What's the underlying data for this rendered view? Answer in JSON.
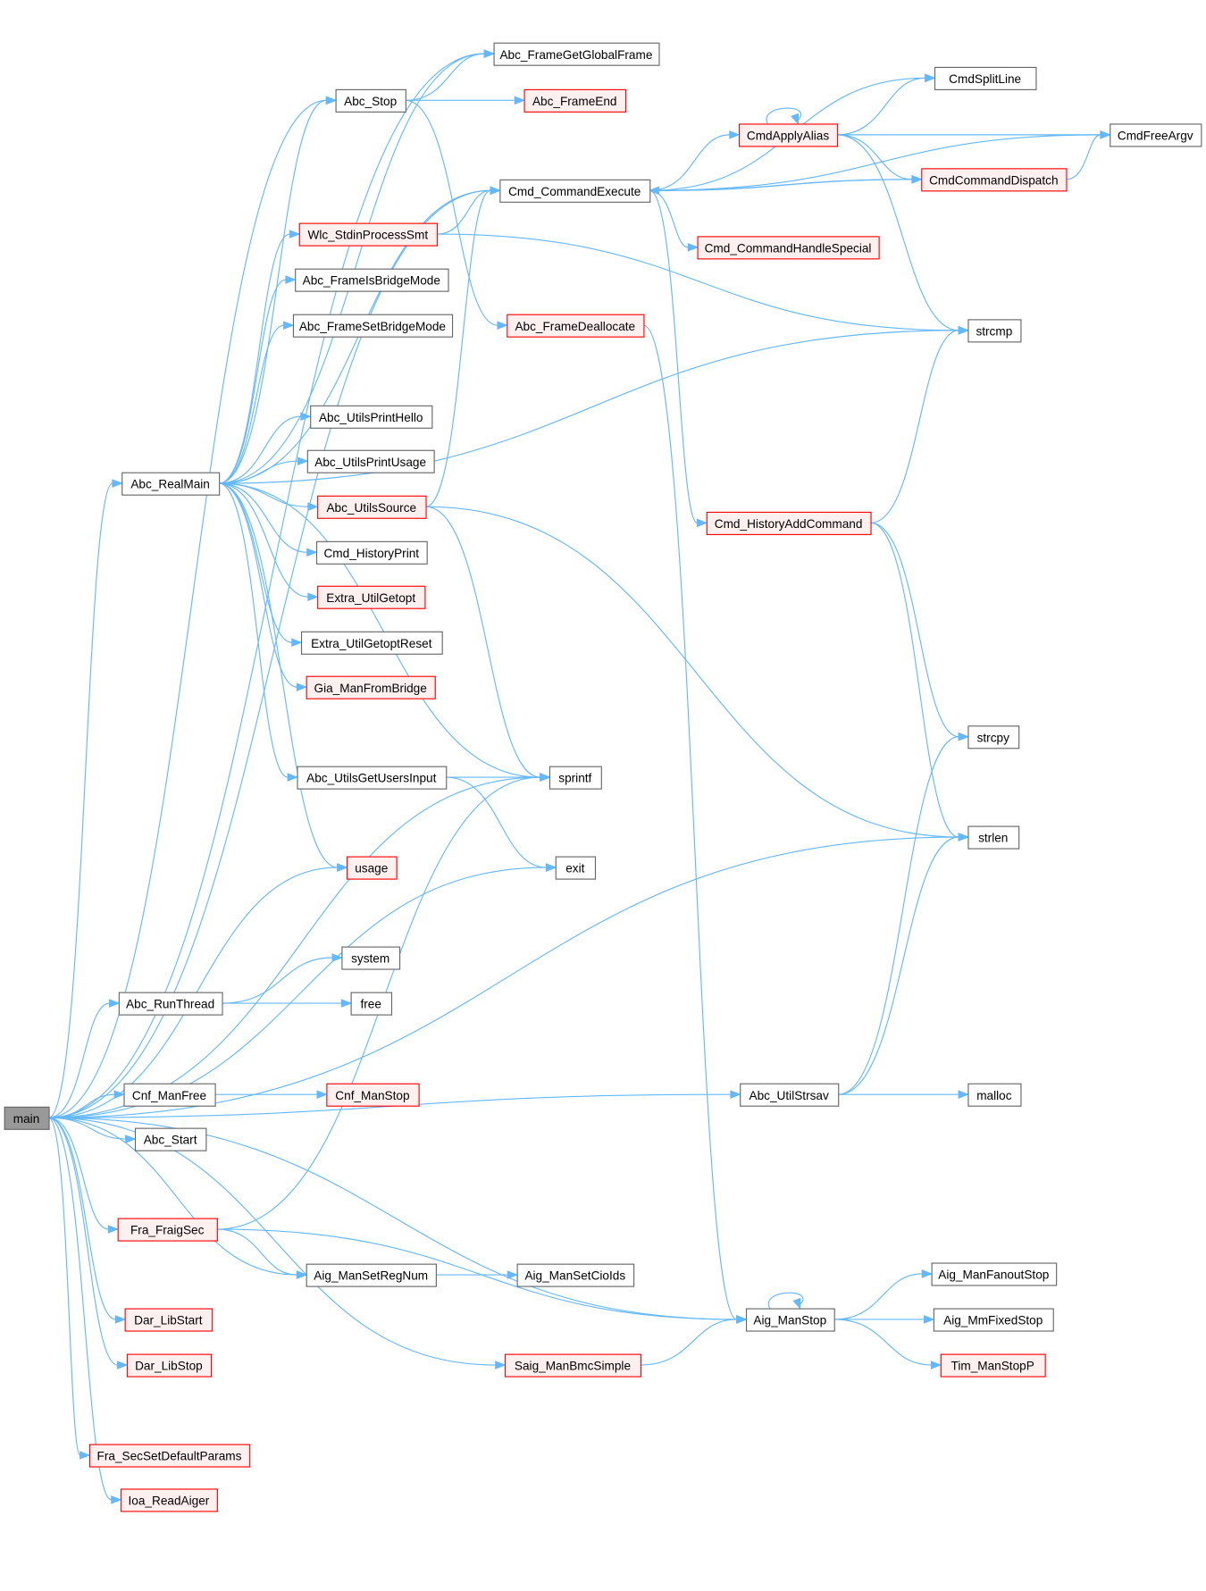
{
  "colors": {
    "edge": "#63b8ff",
    "truncated_border": "#ff0000",
    "truncated_fill": "#fff0f0",
    "root_fill": "#999999",
    "node_border": "#666666"
  },
  "nodes": [
    {
      "id": "main",
      "label": "main",
      "root": true
    },
    {
      "id": "Abc_FrameGetGlobalFrame",
      "label": "Abc_FrameGetGlobalFrame"
    },
    {
      "id": "Abc_Stop",
      "label": "Abc_Stop"
    },
    {
      "id": "Abc_FrameEnd",
      "label": "Abc_FrameEnd",
      "truncated": true
    },
    {
      "id": "CmdSplitLine",
      "label": "CmdSplitLine"
    },
    {
      "id": "CmdApplyAlias",
      "label": "CmdApplyAlias",
      "truncated": true
    },
    {
      "id": "CmdFreeArgv",
      "label": "CmdFreeArgv"
    },
    {
      "id": "Cmd_CommandExecute",
      "label": "Cmd_CommandExecute"
    },
    {
      "id": "CmdCommandDispatch",
      "label": "CmdCommandDispatch",
      "truncated": true
    },
    {
      "id": "Wlc_StdinProcessSmt",
      "label": "Wlc_StdinProcessSmt",
      "truncated": true
    },
    {
      "id": "Cmd_CommandHandleSpecial",
      "label": "Cmd_CommandHandleSpecial",
      "truncated": true
    },
    {
      "id": "Abc_FrameIsBridgeMode",
      "label": "Abc_FrameIsBridgeMode"
    },
    {
      "id": "Abc_FrameSetBridgeMode",
      "label": "Abc_FrameSetBridgeMode"
    },
    {
      "id": "Abc_FrameDeallocate",
      "label": "Abc_FrameDeallocate",
      "truncated": true
    },
    {
      "id": "strcmp",
      "label": "strcmp"
    },
    {
      "id": "Abc_UtilsPrintHello",
      "label": "Abc_UtilsPrintHello"
    },
    {
      "id": "Abc_UtilsPrintUsage",
      "label": "Abc_UtilsPrintUsage"
    },
    {
      "id": "Abc_RealMain",
      "label": "Abc_RealMain"
    },
    {
      "id": "Abc_UtilsSource",
      "label": "Abc_UtilsSource",
      "truncated": true
    },
    {
      "id": "Cmd_HistoryAddCommand",
      "label": "Cmd_HistoryAddCommand",
      "truncated": true
    },
    {
      "id": "Cmd_HistoryPrint",
      "label": "Cmd_HistoryPrint"
    },
    {
      "id": "Extra_UtilGetopt",
      "label": "Extra_UtilGetopt",
      "truncated": true
    },
    {
      "id": "Extra_UtilGetoptReset",
      "label": "Extra_UtilGetoptReset"
    },
    {
      "id": "Gia_ManFromBridge",
      "label": "Gia_ManFromBridge",
      "truncated": true
    },
    {
      "id": "strcpy",
      "label": "strcpy"
    },
    {
      "id": "Abc_UtilsGetUsersInput",
      "label": "Abc_UtilsGetUsersInput"
    },
    {
      "id": "sprintf",
      "label": "sprintf"
    },
    {
      "id": "strlen",
      "label": "strlen"
    },
    {
      "id": "usage",
      "label": "usage",
      "truncated": true
    },
    {
      "id": "exit",
      "label": "exit"
    },
    {
      "id": "system",
      "label": "system"
    },
    {
      "id": "Abc_RunThread",
      "label": "Abc_RunThread"
    },
    {
      "id": "free",
      "label": "free"
    },
    {
      "id": "Cnf_ManFree",
      "label": "Cnf_ManFree"
    },
    {
      "id": "Cnf_ManStop",
      "label": "Cnf_ManStop",
      "truncated": true
    },
    {
      "id": "Abc_UtilStrsav",
      "label": "Abc_UtilStrsav"
    },
    {
      "id": "malloc",
      "label": "malloc"
    },
    {
      "id": "Abc_Start",
      "label": "Abc_Start"
    },
    {
      "id": "Fra_FraigSec",
      "label": "Fra_FraigSec",
      "truncated": true
    },
    {
      "id": "Aig_ManSetRegNum",
      "label": "Aig_ManSetRegNum"
    },
    {
      "id": "Aig_ManSetCioIds",
      "label": "Aig_ManSetCioIds"
    },
    {
      "id": "Aig_ManFanoutStop",
      "label": "Aig_ManFanoutStop"
    },
    {
      "id": "Dar_LibStart",
      "label": "Dar_LibStart",
      "truncated": true
    },
    {
      "id": "Aig_ManStop",
      "label": "Aig_ManStop"
    },
    {
      "id": "Aig_MmFixedStop",
      "label": "Aig_MmFixedStop"
    },
    {
      "id": "Dar_LibStop",
      "label": "Dar_LibStop",
      "truncated": true
    },
    {
      "id": "Saig_ManBmcSimple",
      "label": "Saig_ManBmcSimple",
      "truncated": true
    },
    {
      "id": "Tim_ManStopP",
      "label": "Tim_ManStopP",
      "truncated": true
    },
    {
      "id": "Fra_SecSetDefaultParams",
      "label": "Fra_SecSetDefaultParams",
      "truncated": true
    },
    {
      "id": "Ioa_ReadAiger",
      "label": "Ioa_ReadAiger",
      "truncated": true
    }
  ],
  "edges": [
    [
      "main",
      "Abc_FrameGetGlobalFrame"
    ],
    [
      "main",
      "Abc_Stop"
    ],
    [
      "main",
      "Cmd_CommandExecute"
    ],
    [
      "main",
      "Abc_RealMain"
    ],
    [
      "main",
      "sprintf"
    ],
    [
      "main",
      "usage"
    ],
    [
      "main",
      "exit"
    ],
    [
      "main",
      "strlen"
    ],
    [
      "main",
      "Abc_RunThread"
    ],
    [
      "main",
      "Cnf_ManFree"
    ],
    [
      "main",
      "Abc_UtilStrsav"
    ],
    [
      "main",
      "Abc_Start"
    ],
    [
      "main",
      "Fra_FraigSec"
    ],
    [
      "main",
      "Aig_ManSetRegNum"
    ],
    [
      "main",
      "Dar_LibStart"
    ],
    [
      "main",
      "Dar_LibStop"
    ],
    [
      "main",
      "Saig_ManBmcSimple"
    ],
    [
      "main",
      "Fra_SecSetDefaultParams"
    ],
    [
      "main",
      "Ioa_ReadAiger"
    ],
    [
      "main",
      "Aig_ManStop"
    ],
    [
      "Abc_Stop",
      "Abc_FrameGetGlobalFrame"
    ],
    [
      "Abc_Stop",
      "Abc_FrameEnd"
    ],
    [
      "Abc_Stop",
      "Abc_FrameDeallocate"
    ],
    [
      "Abc_RealMain",
      "Abc_FrameGetGlobalFrame"
    ],
    [
      "Abc_RealMain",
      "Abc_Stop"
    ],
    [
      "Abc_RealMain",
      "Cmd_CommandExecute"
    ],
    [
      "Abc_RealMain",
      "Wlc_StdinProcessSmt"
    ],
    [
      "Abc_RealMain",
      "Abc_FrameIsBridgeMode"
    ],
    [
      "Abc_RealMain",
      "Abc_FrameSetBridgeMode"
    ],
    [
      "Abc_RealMain",
      "strcmp"
    ],
    [
      "Abc_RealMain",
      "Abc_UtilsPrintHello"
    ],
    [
      "Abc_RealMain",
      "Abc_UtilsPrintUsage"
    ],
    [
      "Abc_RealMain",
      "Abc_UtilsSource"
    ],
    [
      "Abc_RealMain",
      "Cmd_HistoryPrint"
    ],
    [
      "Abc_RealMain",
      "Extra_UtilGetopt"
    ],
    [
      "Abc_RealMain",
      "Extra_UtilGetoptReset"
    ],
    [
      "Abc_RealMain",
      "Gia_ManFromBridge"
    ],
    [
      "Abc_RealMain",
      "Abc_UtilsGetUsersInput"
    ],
    [
      "Abc_RealMain",
      "sprintf"
    ],
    [
      "Abc_RealMain",
      "usage"
    ],
    [
      "Cmd_CommandExecute",
      "CmdFreeArgv"
    ],
    [
      "Cmd_CommandExecute",
      "CmdSplitLine"
    ],
    [
      "Cmd_CommandExecute",
      "CmdApplyAlias"
    ],
    [
      "Cmd_CommandExecute",
      "CmdCommandDispatch"
    ],
    [
      "Cmd_CommandExecute",
      "Cmd_CommandHandleSpecial"
    ],
    [
      "Cmd_CommandExecute",
      "Cmd_HistoryAddCommand"
    ],
    [
      "CmdApplyAlias",
      "CmdApplyAlias"
    ],
    [
      "CmdApplyAlias",
      "CmdSplitLine"
    ],
    [
      "CmdApplyAlias",
      "CmdFreeArgv"
    ],
    [
      "CmdApplyAlias",
      "CmdCommandDispatch"
    ],
    [
      "CmdApplyAlias",
      "strcmp"
    ],
    [
      "CmdCommandDispatch",
      "CmdFreeArgv"
    ],
    [
      "CmdCommandDispatch",
      "Cmd_CommandExecute"
    ],
    [
      "Wlc_StdinProcessSmt",
      "Cmd_CommandExecute"
    ],
    [
      "Wlc_StdinProcessSmt",
      "strcmp"
    ],
    [
      "Abc_FrameDeallocate",
      "Aig_ManStop"
    ],
    [
      "Abc_UtilsSource",
      "Cmd_CommandExecute"
    ],
    [
      "Abc_UtilsSource",
      "sprintf"
    ],
    [
      "Abc_UtilsSource",
      "strlen"
    ],
    [
      "Cmd_HistoryAddCommand",
      "strcmp"
    ],
    [
      "Cmd_HistoryAddCommand",
      "strcpy"
    ],
    [
      "Cmd_HistoryAddCommand",
      "strlen"
    ],
    [
      "Abc_UtilsGetUsersInput",
      "sprintf"
    ],
    [
      "Abc_UtilsGetUsersInput",
      "exit"
    ],
    [
      "Abc_RunThread",
      "system"
    ],
    [
      "Abc_RunThread",
      "free"
    ],
    [
      "Cnf_ManFree",
      "Cnf_ManStop"
    ],
    [
      "Abc_UtilStrsav",
      "strcpy"
    ],
    [
      "Abc_UtilStrsav",
      "strlen"
    ],
    [
      "Abc_UtilStrsav",
      "malloc"
    ],
    [
      "Fra_FraigSec",
      "sprintf"
    ],
    [
      "Fra_FraigSec",
      "Aig_ManSetRegNum"
    ],
    [
      "Fra_FraigSec",
      "Aig_ManStop"
    ],
    [
      "Aig_ManSetRegNum",
      "Aig_ManSetCioIds"
    ],
    [
      "Aig_ManStop",
      "Aig_ManStop"
    ],
    [
      "Aig_ManStop",
      "Aig_ManFanoutStop"
    ],
    [
      "Aig_ManStop",
      "Aig_MmFixedStop"
    ],
    [
      "Aig_ManStop",
      "Tim_ManStopP"
    ],
    [
      "Saig_ManBmcSimple",
      "Aig_ManStop"
    ]
  ]
}
